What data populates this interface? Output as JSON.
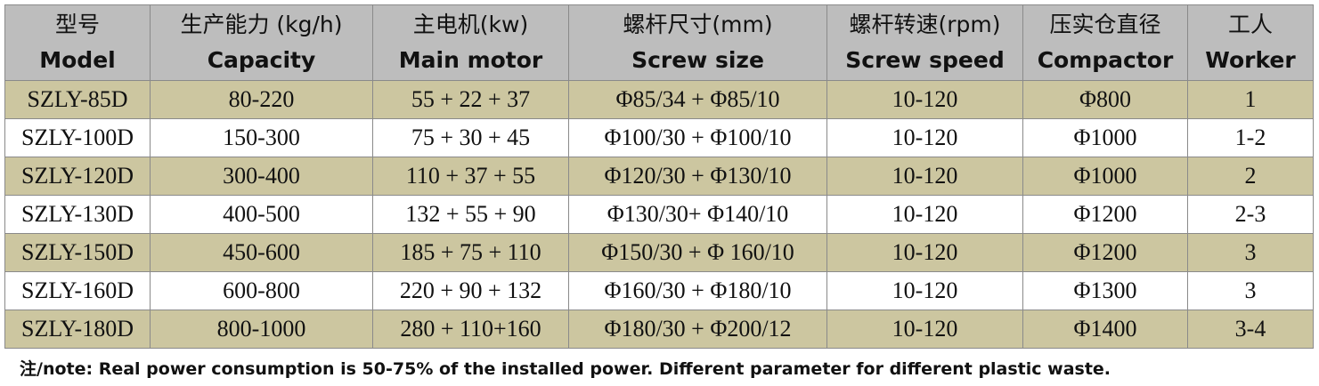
{
  "table": {
    "header": [
      {
        "cn": "型号",
        "en": "Model"
      },
      {
        "cn": "生产能力  (kg/h)",
        "en": "Capacity"
      },
      {
        "cn": "主电机(kw)",
        "en": "Main motor"
      },
      {
        "cn": "螺杆尺寸(mm)",
        "en": "Screw size"
      },
      {
        "cn": "螺杆转速(rpm)",
        "en": "Screw speed"
      },
      {
        "cn": "压实仓直径",
        "en": "Compactor"
      },
      {
        "cn": "工人",
        "en": "Worker"
      }
    ],
    "rows": [
      [
        "SZLY-85D",
        "80-220",
        "55 + 22 + 37",
        "Φ85/34 + Φ85/10",
        "10-120",
        "Φ800",
        "1"
      ],
      [
        "SZLY-100D",
        "150-300",
        "75 + 30 + 45",
        "Φ100/30 + Φ100/10",
        "10-120",
        "Φ1000",
        "1-2"
      ],
      [
        "SZLY-120D",
        "300-400",
        "110 + 37 + 55",
        "Φ120/30 + Φ130/10",
        "10-120",
        "Φ1000",
        "2"
      ],
      [
        "SZLY-130D",
        "400-500",
        "132 + 55 + 90",
        "Φ130/30+ Φ140/10",
        "10-120",
        "Φ1200",
        "2-3"
      ],
      [
        "SZLY-150D",
        "450-600",
        "185 + 75 + 110",
        "Φ150/30 + Φ 160/10",
        "10-120",
        "Φ1200",
        "3"
      ],
      [
        "SZLY-160D",
        "600-800",
        "220 + 90 + 132",
        "Φ160/30 + Φ180/10",
        "10-120",
        "Φ1300",
        "3"
      ],
      [
        "SZLY-180D",
        "800-1000",
        "280 + 110+160",
        "Φ180/30 + Φ200/12",
        "10-120",
        "Φ1400",
        "3-4"
      ]
    ]
  },
  "note": "注/note: Real power consumption is 50-75% of the installed power. Different parameter for different plastic waste."
}
